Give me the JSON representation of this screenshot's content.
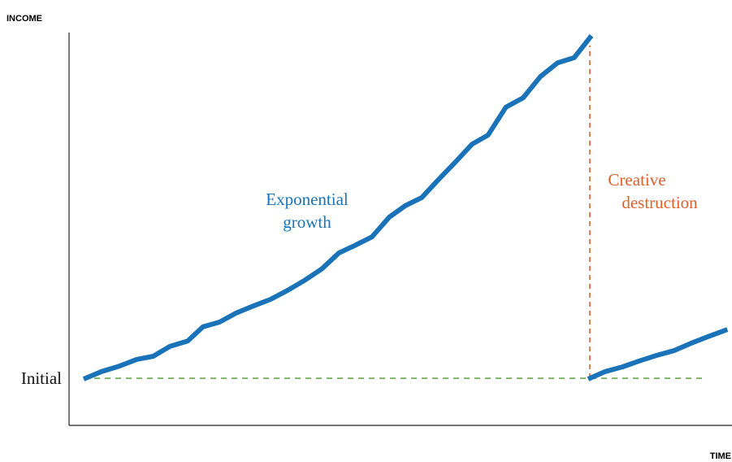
{
  "chart_data": {
    "type": "line",
    "y_label": "INCOME",
    "x_label": "TIME",
    "xlim": [
      0,
      100
    ],
    "ylim": [
      0,
      100
    ],
    "yticks": [
      {
        "value": 12.0,
        "label": "Initial"
      }
    ],
    "x": [
      2.2,
      4.9,
      7.6,
      10.2,
      12.7,
      15.2,
      17.9,
      20.2,
      22.7,
      25.2,
      27.8,
      30.4,
      33.0,
      35.5,
      38.1,
      40.7,
      43.1,
      45.7,
      48.3,
      50.7,
      53.2,
      55.8,
      58.2,
      60.8,
      63.2,
      65.9,
      68.5,
      71.1,
      73.7,
      76.2,
      78.8,
      null,
      78.3,
      80.9,
      83.5,
      86.0,
      88.6,
      91.2,
      93.8,
      96.4,
      99.3
    ],
    "series": [
      {
        "color": "#1a73b8",
        "values": [
          11.8,
          13.7,
          15.1,
          16.8,
          17.6,
          20.1,
          21.5,
          25.1,
          26.3,
          28.6,
          30.4,
          32.1,
          34.4,
          36.9,
          39.8,
          43.9,
          45.8,
          48.0,
          53.0,
          55.9,
          58.0,
          62.7,
          66.9,
          71.6,
          73.9,
          81.0,
          83.4,
          88.8,
          92.3,
          93.6,
          99.2,
          null,
          11.8,
          13.7,
          14.9,
          16.4,
          17.8,
          19.0,
          20.9,
          22.6,
          24.4
        ]
      }
    ],
    "annotations": [
      {
        "lines": [
          "Exponential",
          "growth"
        ],
        "color": "#1a73b8"
      },
      {
        "lines": [
          "Creative",
          "destruction"
        ],
        "color": "#e0602a"
      }
    ],
    "reference_color": "#6aa84f",
    "drop_color": "#e0602a"
  }
}
